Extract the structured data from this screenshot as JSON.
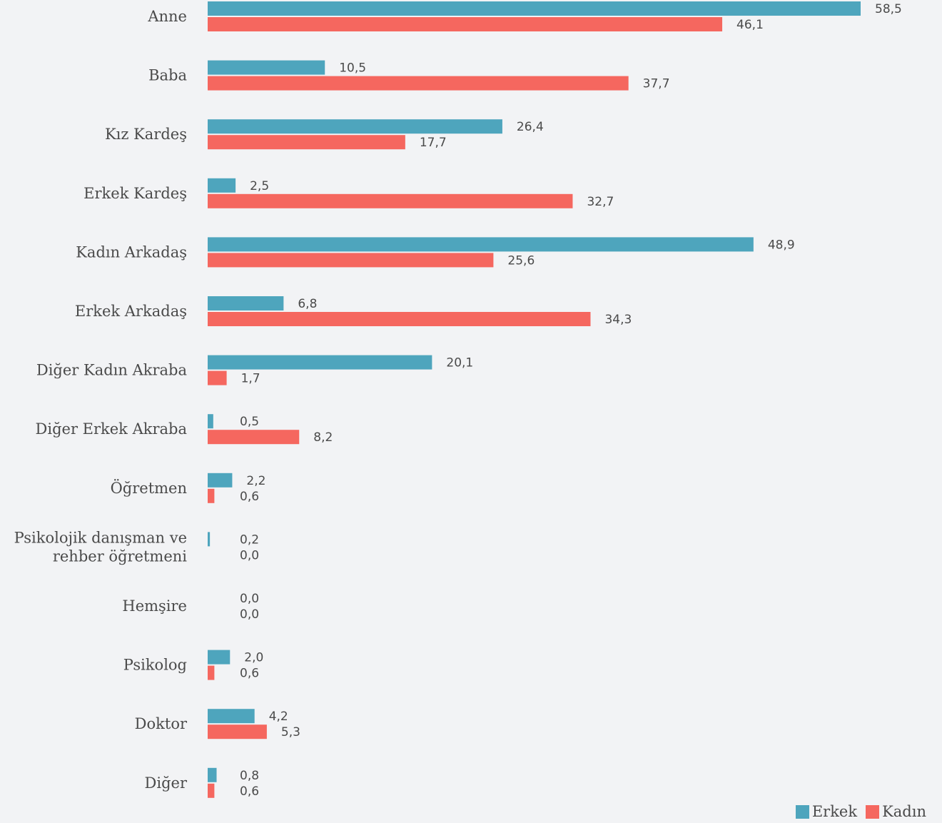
{
  "chart_data": {
    "type": "bar",
    "orientation": "horizontal",
    "categories": [
      [
        "Anne"
      ],
      [
        "Baba"
      ],
      [
        "Kız Kardeş"
      ],
      [
        "Erkek Kardeş"
      ],
      [
        "Kadın Arkadaş"
      ],
      [
        "Erkek Arkadaş"
      ],
      [
        "Diğer Kadın Akraba"
      ],
      [
        "Diğer Erkek Akraba"
      ],
      [
        "Öğretmen"
      ],
      [
        "Psikolojik danışman ve",
        "rehber öğretmeni"
      ],
      [
        "Hemşire"
      ],
      [
        "Psikolog"
      ],
      [
        "Doktor"
      ],
      [
        "Diğer"
      ]
    ],
    "series": [
      {
        "name": "Erkek",
        "color": "#4ea5bd",
        "values": [
          58.5,
          10.5,
          26.4,
          2.5,
          48.9,
          6.8,
          20.1,
          0.5,
          2.2,
          0.2,
          0.0,
          2.0,
          4.2,
          0.8
        ],
        "labels": [
          "58,5",
          "10,5",
          "26,4",
          "2,5",
          "48,9",
          "6,8",
          "20,1",
          "0,5",
          "2,2",
          "0,2",
          "0,0",
          "2,0",
          "4,2",
          "0,8"
        ]
      },
      {
        "name": "Kadın",
        "color": "#f5675f",
        "values": [
          46.1,
          37.7,
          17.7,
          32.7,
          25.6,
          34.3,
          1.7,
          8.2,
          0.6,
          0.0,
          0.0,
          0.6,
          5.3,
          0.6
        ],
        "labels": [
          "46,1",
          "37,7",
          "17,7",
          "32,7",
          "25,6",
          "34,3",
          "1,7",
          "8,2",
          "0,6",
          "0,0",
          "0,0",
          "0,6",
          "5,3",
          "0,6"
        ]
      }
    ],
    "xlim": [
      0,
      60
    ],
    "legend": "bottom-right",
    "grid": false
  }
}
